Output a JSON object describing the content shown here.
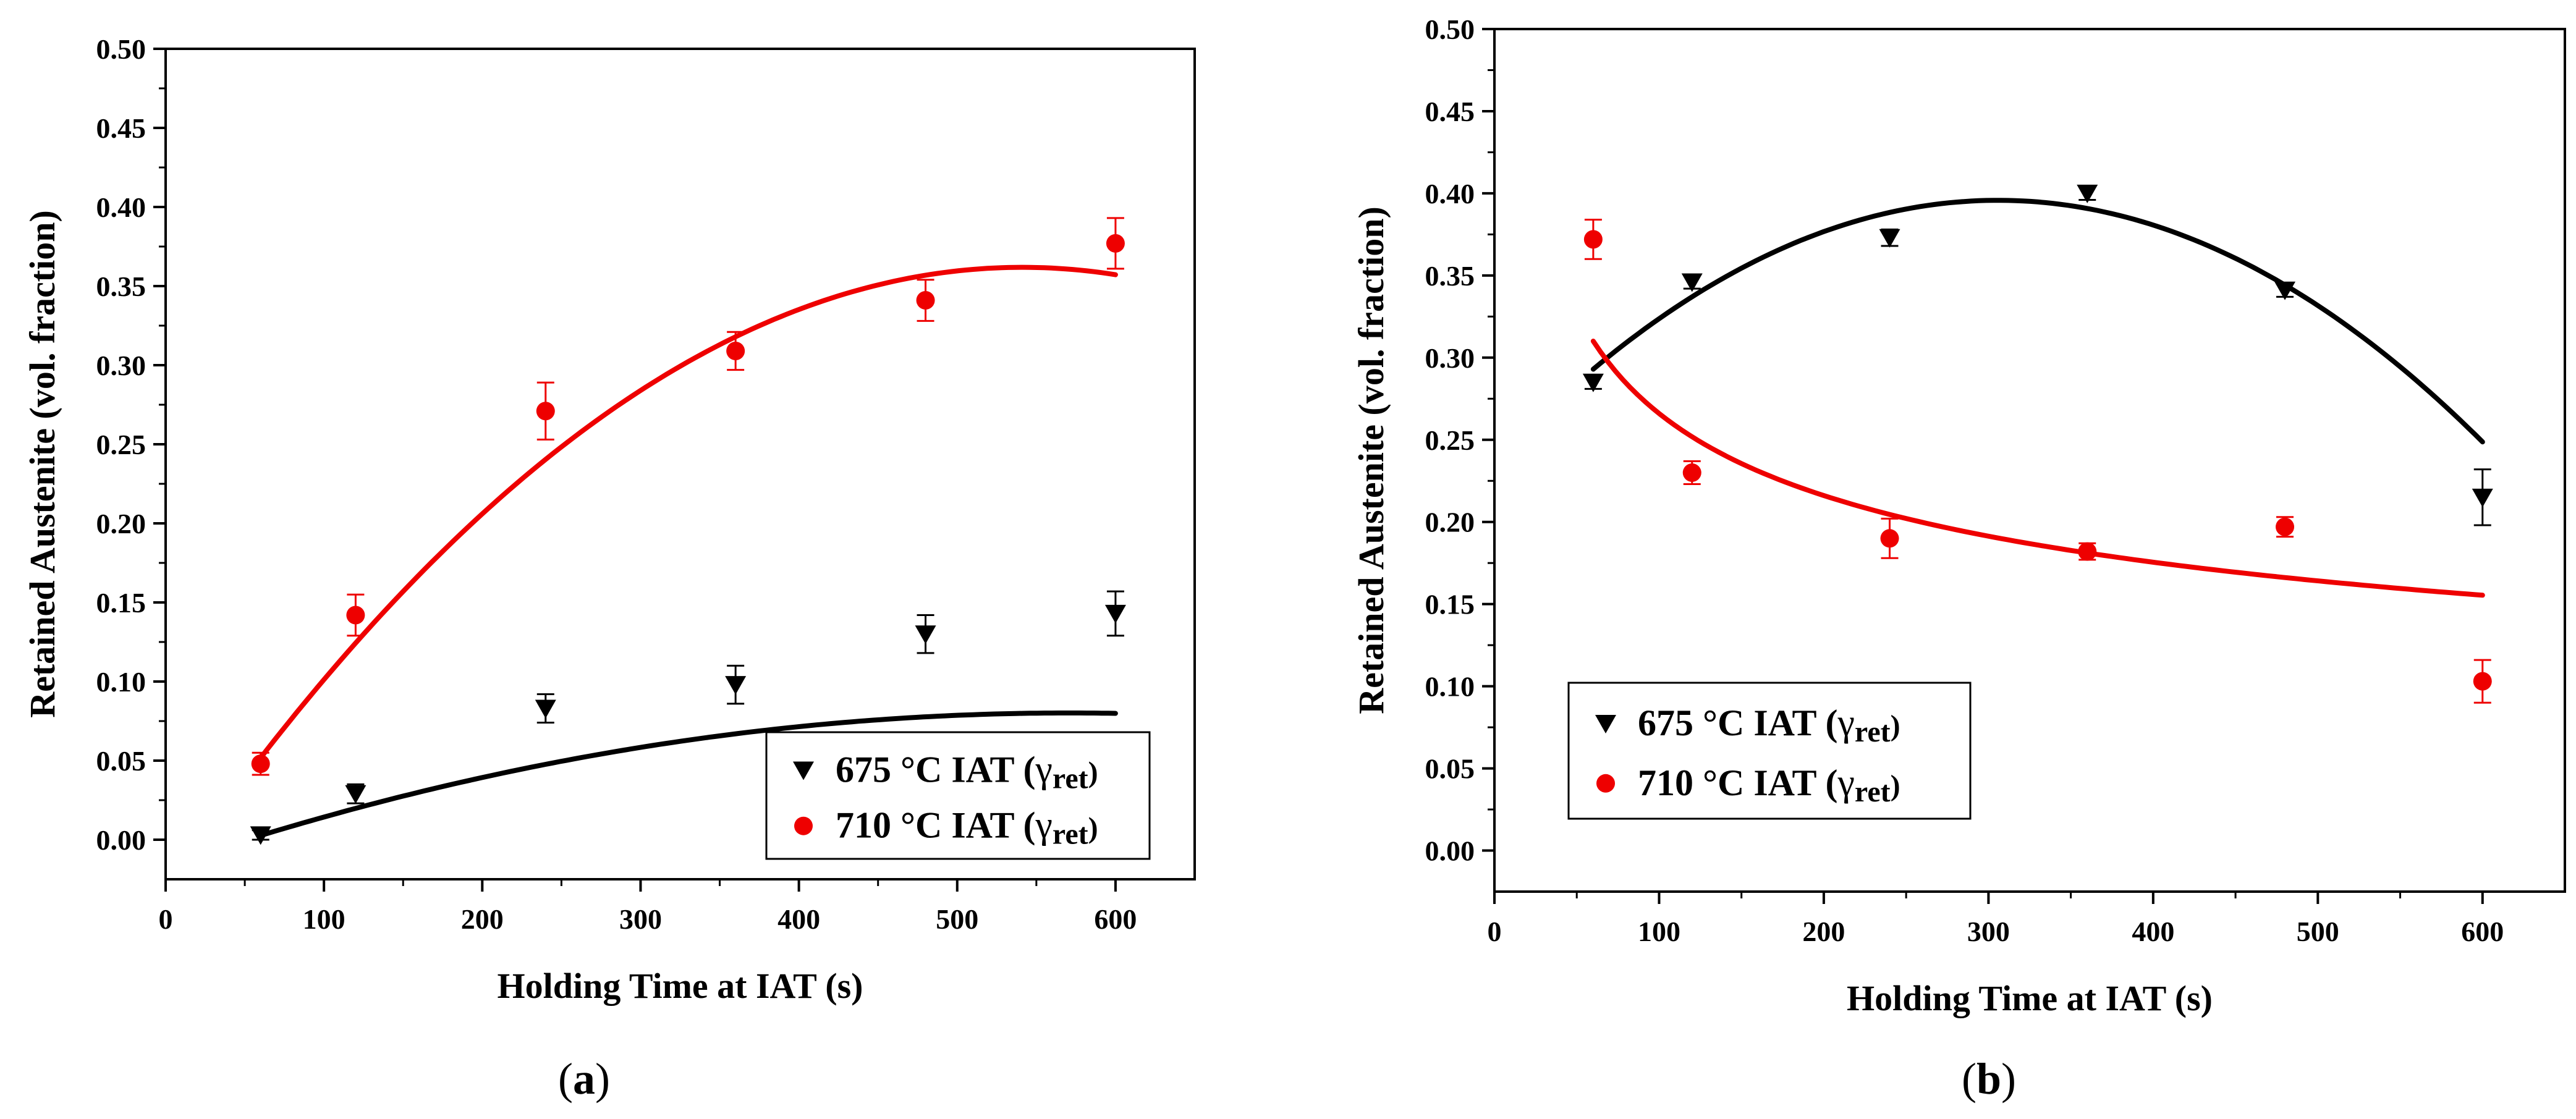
{
  "charts": [
    {
      "caption": "(a)",
      "caption_letter": "a",
      "chart_data": {
        "type": "scatter",
        "xlabel": "Holding Time at IAT (s)",
        "ylabel": "Retained Austenite (vol. fraction)",
        "xlim": [
          0,
          650
        ],
        "ylim": [
          -0.025,
          0.5
        ],
        "xticks": [
          0,
          100,
          200,
          300,
          400,
          500,
          600
        ],
        "xtick_labels": [
          "0",
          "100",
          "200",
          "300",
          "400",
          "500",
          "600"
        ],
        "yticks": [
          0.0,
          0.05,
          0.1,
          0.15,
          0.2,
          0.25,
          0.3,
          0.35,
          0.4,
          0.45,
          0.5
        ],
        "ytick_labels": [
          "0.00",
          "0.05",
          "0.10",
          "0.15",
          "0.20",
          "0.25",
          "0.30",
          "0.35",
          "0.40",
          "0.45",
          "0.50"
        ],
        "grid": false,
        "legend_position": "bottom-right",
        "series": [
          {
            "name": "675 °C IAT (γret)",
            "legend_label": "675 °C IAT (",
            "legend_symbol": "γ",
            "legend_sub": "ret",
            "legend_close": ")",
            "color": "#000000",
            "marker": "triangle-down",
            "x": [
              60,
              120,
              240,
              360,
              480,
              600
            ],
            "y": [
              0.003,
              0.029,
              0.083,
              0.098,
              0.13,
              0.143
            ],
            "err": [
              0.003,
              0.006,
              0.009,
              0.012,
              0.012,
              0.014
            ],
            "fit": {
              "type": "polynomial",
              "x_range": [
                60,
                600
              ],
              "coefficients": [
                -0.0166,
                0.000339,
                -2.97e-07
              ]
            }
          },
          {
            "name": "710 °C IAT (γret)",
            "legend_label": "710 °C IAT (",
            "legend_symbol": "γ",
            "legend_sub": "ret",
            "legend_close": ")",
            "color": "#ee0000",
            "marker": "circle",
            "x": [
              60,
              120,
              240,
              360,
              480,
              600
            ],
            "y": [
              0.048,
              0.142,
              0.271,
              0.309,
              0.341,
              0.377
            ],
            "err": [
              0.007,
              0.013,
              0.018,
              0.012,
              0.013,
              0.016
            ],
            "fit": {
              "type": "polynomial",
              "x_range": [
                60,
                600
              ],
              "coefficients": [
                -0.0304,
                0.00145,
                -1.34e-06
              ]
            }
          }
        ]
      }
    },
    {
      "caption": "(b)",
      "caption_letter": "b",
      "chart_data": {
        "type": "scatter",
        "xlabel": "Holding Time at IAT (s)",
        "ylabel": "Retained Austenite (vol. fraction)",
        "xlim": [
          0,
          650
        ],
        "ylim": [
          -0.025,
          0.5
        ],
        "xticks": [
          0,
          100,
          200,
          300,
          400,
          500,
          600
        ],
        "xtick_labels": [
          "0",
          "100",
          "200",
          "300",
          "400",
          "500",
          "600"
        ],
        "yticks": [
          0.0,
          0.05,
          0.1,
          0.15,
          0.2,
          0.25,
          0.3,
          0.35,
          0.4,
          0.45,
          0.5
        ],
        "ytick_labels": [
          "0.00",
          "0.05",
          "0.10",
          "0.15",
          "0.20",
          "0.25",
          "0.30",
          "0.35",
          "0.40",
          "0.45",
          "0.50"
        ],
        "grid": false,
        "legend_position": "bottom-left",
        "series": [
          {
            "name": "675 °C IAT (γret)",
            "legend_label": "675 °C IAT (",
            "legend_symbol": "γ",
            "legend_sub": "ret",
            "legend_close": ")",
            "color": "#000000",
            "marker": "triangle-down",
            "x": [
              60,
              120,
              240,
              360,
              480,
              600
            ],
            "y": [
              0.285,
              0.346,
              0.373,
              0.4,
              0.341,
              0.215
            ],
            "err": [
              0.004,
              0.004,
              0.005,
              0.004,
              0.004,
              0.017
            ],
            "fit": {
              "type": "polynomial",
              "x_range": [
                60,
                600
              ],
              "coefficients": [
                0.2367,
                0.00104,
                -1.7e-06
              ]
            }
          },
          {
            "name": "710 °C IAT (γret)",
            "legend_label": "710 °C IAT (",
            "legend_symbol": "γ",
            "legend_sub": "ret",
            "legend_close": ")",
            "color": "#ee0000",
            "marker": "circle",
            "x": [
              60,
              120,
              240,
              360,
              480,
              600
            ],
            "y": [
              0.372,
              0.23,
              0.19,
              0.182,
              0.197,
              0.103
            ],
            "err": [
              0.012,
              0.007,
              0.012,
              0.005,
              0.006,
              0.013
            ],
            "fit": {
              "type": "power",
              "x_range": [
                60,
                600
              ],
              "a": 1.059,
              "b": -0.3
            }
          }
        ]
      }
    }
  ]
}
